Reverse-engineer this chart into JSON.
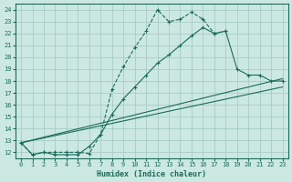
{
  "xlabel": "Humidex (Indice chaleur)",
  "bg_color": "#cce8e2",
  "grid_color": "#a0c8c0",
  "line_color": "#1a6b5a",
  "xlim": [
    -0.5,
    23.5
  ],
  "ylim": [
    11.5,
    24.5
  ],
  "xticks": [
    0,
    1,
    2,
    3,
    4,
    5,
    6,
    7,
    8,
    9,
    10,
    11,
    12,
    13,
    14,
    15,
    16,
    17,
    18,
    19,
    20,
    21,
    22,
    23
  ],
  "yticks": [
    12,
    13,
    14,
    15,
    16,
    17,
    18,
    19,
    20,
    21,
    22,
    23,
    24
  ],
  "series": [
    {
      "x": [
        0,
        1,
        2,
        3,
        4,
        5,
        6,
        7,
        8,
        9,
        10,
        11,
        12,
        13,
        14,
        15,
        16,
        17,
        18
      ],
      "y": [
        12.8,
        11.8,
        12.0,
        12.0,
        12.0,
        12.0,
        11.9,
        13.5,
        17.3,
        19.2,
        20.8,
        22.2,
        24.0,
        23.0,
        23.2,
        23.8,
        23.2,
        22.0,
        22.2
      ],
      "ls": "--",
      "marker": "+"
    },
    {
      "x": [
        0,
        1,
        2,
        3,
        4,
        5,
        6,
        7,
        8,
        9,
        10,
        11,
        12,
        13,
        14,
        15,
        16,
        17,
        18,
        19,
        20,
        21,
        22,
        23
      ],
      "y": [
        12.8,
        11.8,
        12.0,
        11.8,
        11.8,
        11.8,
        12.5,
        13.5,
        15.2,
        16.5,
        17.5,
        18.5,
        19.5,
        20.2,
        21.0,
        21.8,
        22.5,
        22.0,
        22.2,
        19.0,
        18.5,
        18.5,
        18.0,
        18.0
      ],
      "ls": "-",
      "marker": "+"
    },
    {
      "x": [
        0,
        23
      ],
      "y": [
        12.8,
        18.2
      ],
      "ls": "-",
      "marker": null
    },
    {
      "x": [
        0,
        23
      ],
      "y": [
        12.8,
        17.5
      ],
      "ls": "-",
      "marker": null
    }
  ]
}
